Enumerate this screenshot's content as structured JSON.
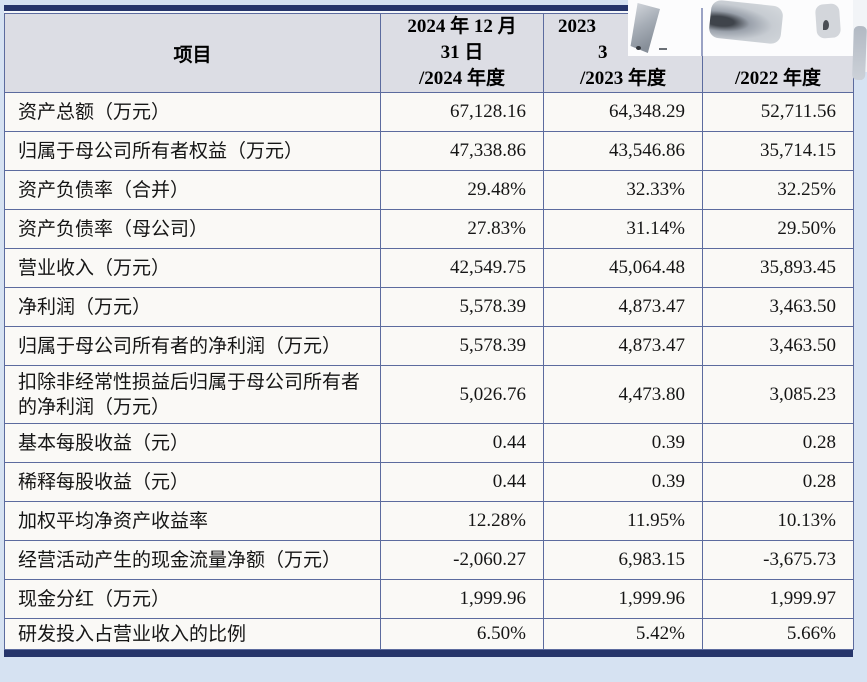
{
  "colors": {
    "page_background": "#d6e2f2",
    "rule_bar": "#26356b",
    "table_border": "#5c6b9e",
    "header_background": "#dcdde4",
    "cell_background": "#faf9f6",
    "text": "#151515",
    "smudge_grey": "#a6adb6"
  },
  "table": {
    "header": {
      "item_label": "项目",
      "col_2024": [
        "2024 年 12 月",
        "31 日",
        "/2024 年度"
      ],
      "col_2023": [
        "2023",
        "3",
        "/2023 年度"
      ],
      "col_2022": [
        "",
        "",
        "/2022 年度"
      ]
    },
    "rows": [
      {
        "label": "资产总额（万元）",
        "v2024": "67,128.16",
        "v2023": "64,348.29",
        "v2022": "52,711.56"
      },
      {
        "label": "归属于母公司所有者权益（万元）",
        "v2024": "47,338.86",
        "v2023": "43,546.86",
        "v2022": "35,714.15"
      },
      {
        "label": "资产负债率（合并）",
        "v2024": "29.48%",
        "v2023": "32.33%",
        "v2022": "32.25%"
      },
      {
        "label": "资产负债率（母公司）",
        "v2024": "27.83%",
        "v2023": "31.14%",
        "v2022": "29.50%"
      },
      {
        "label": "营业收入（万元）",
        "v2024": "42,549.75",
        "v2023": "45,064.48",
        "v2022": "35,893.45"
      },
      {
        "label": "净利润（万元）",
        "v2024": "5,578.39",
        "v2023": "4,873.47",
        "v2022": "3,463.50"
      },
      {
        "label": "归属于母公司所有者的净利润（万元）",
        "v2024": "5,578.39",
        "v2023": "4,873.47",
        "v2022": "3,463.50"
      },
      {
        "label": "扣除非经常性损益后归属于母公司所有者的净利润（万元）",
        "v2024": "5,026.76",
        "v2023": "4,473.80",
        "v2022": "3,085.23"
      },
      {
        "label": "基本每股收益（元）",
        "v2024": "0.44",
        "v2023": "0.39",
        "v2022": "0.28"
      },
      {
        "label": "稀释每股收益（元）",
        "v2024": "0.44",
        "v2023": "0.39",
        "v2022": "0.28"
      },
      {
        "label": "加权平均净资产收益率",
        "v2024": "12.28%",
        "v2023": "11.95%",
        "v2022": "10.13%"
      },
      {
        "label": "经营活动产生的现金流量净额（万元）",
        "v2024": "-2,060.27",
        "v2023": "6,983.15",
        "v2022": "-3,675.73"
      },
      {
        "label": "现金分红（万元）",
        "v2024": "1,999.96",
        "v2023": "1,999.96",
        "v2022": "1,999.97"
      },
      {
        "label": "研发投入占营业收入的比例",
        "v2024": "6.50%",
        "v2023": "5.42%",
        "v2022": "5.66%"
      }
    ]
  }
}
